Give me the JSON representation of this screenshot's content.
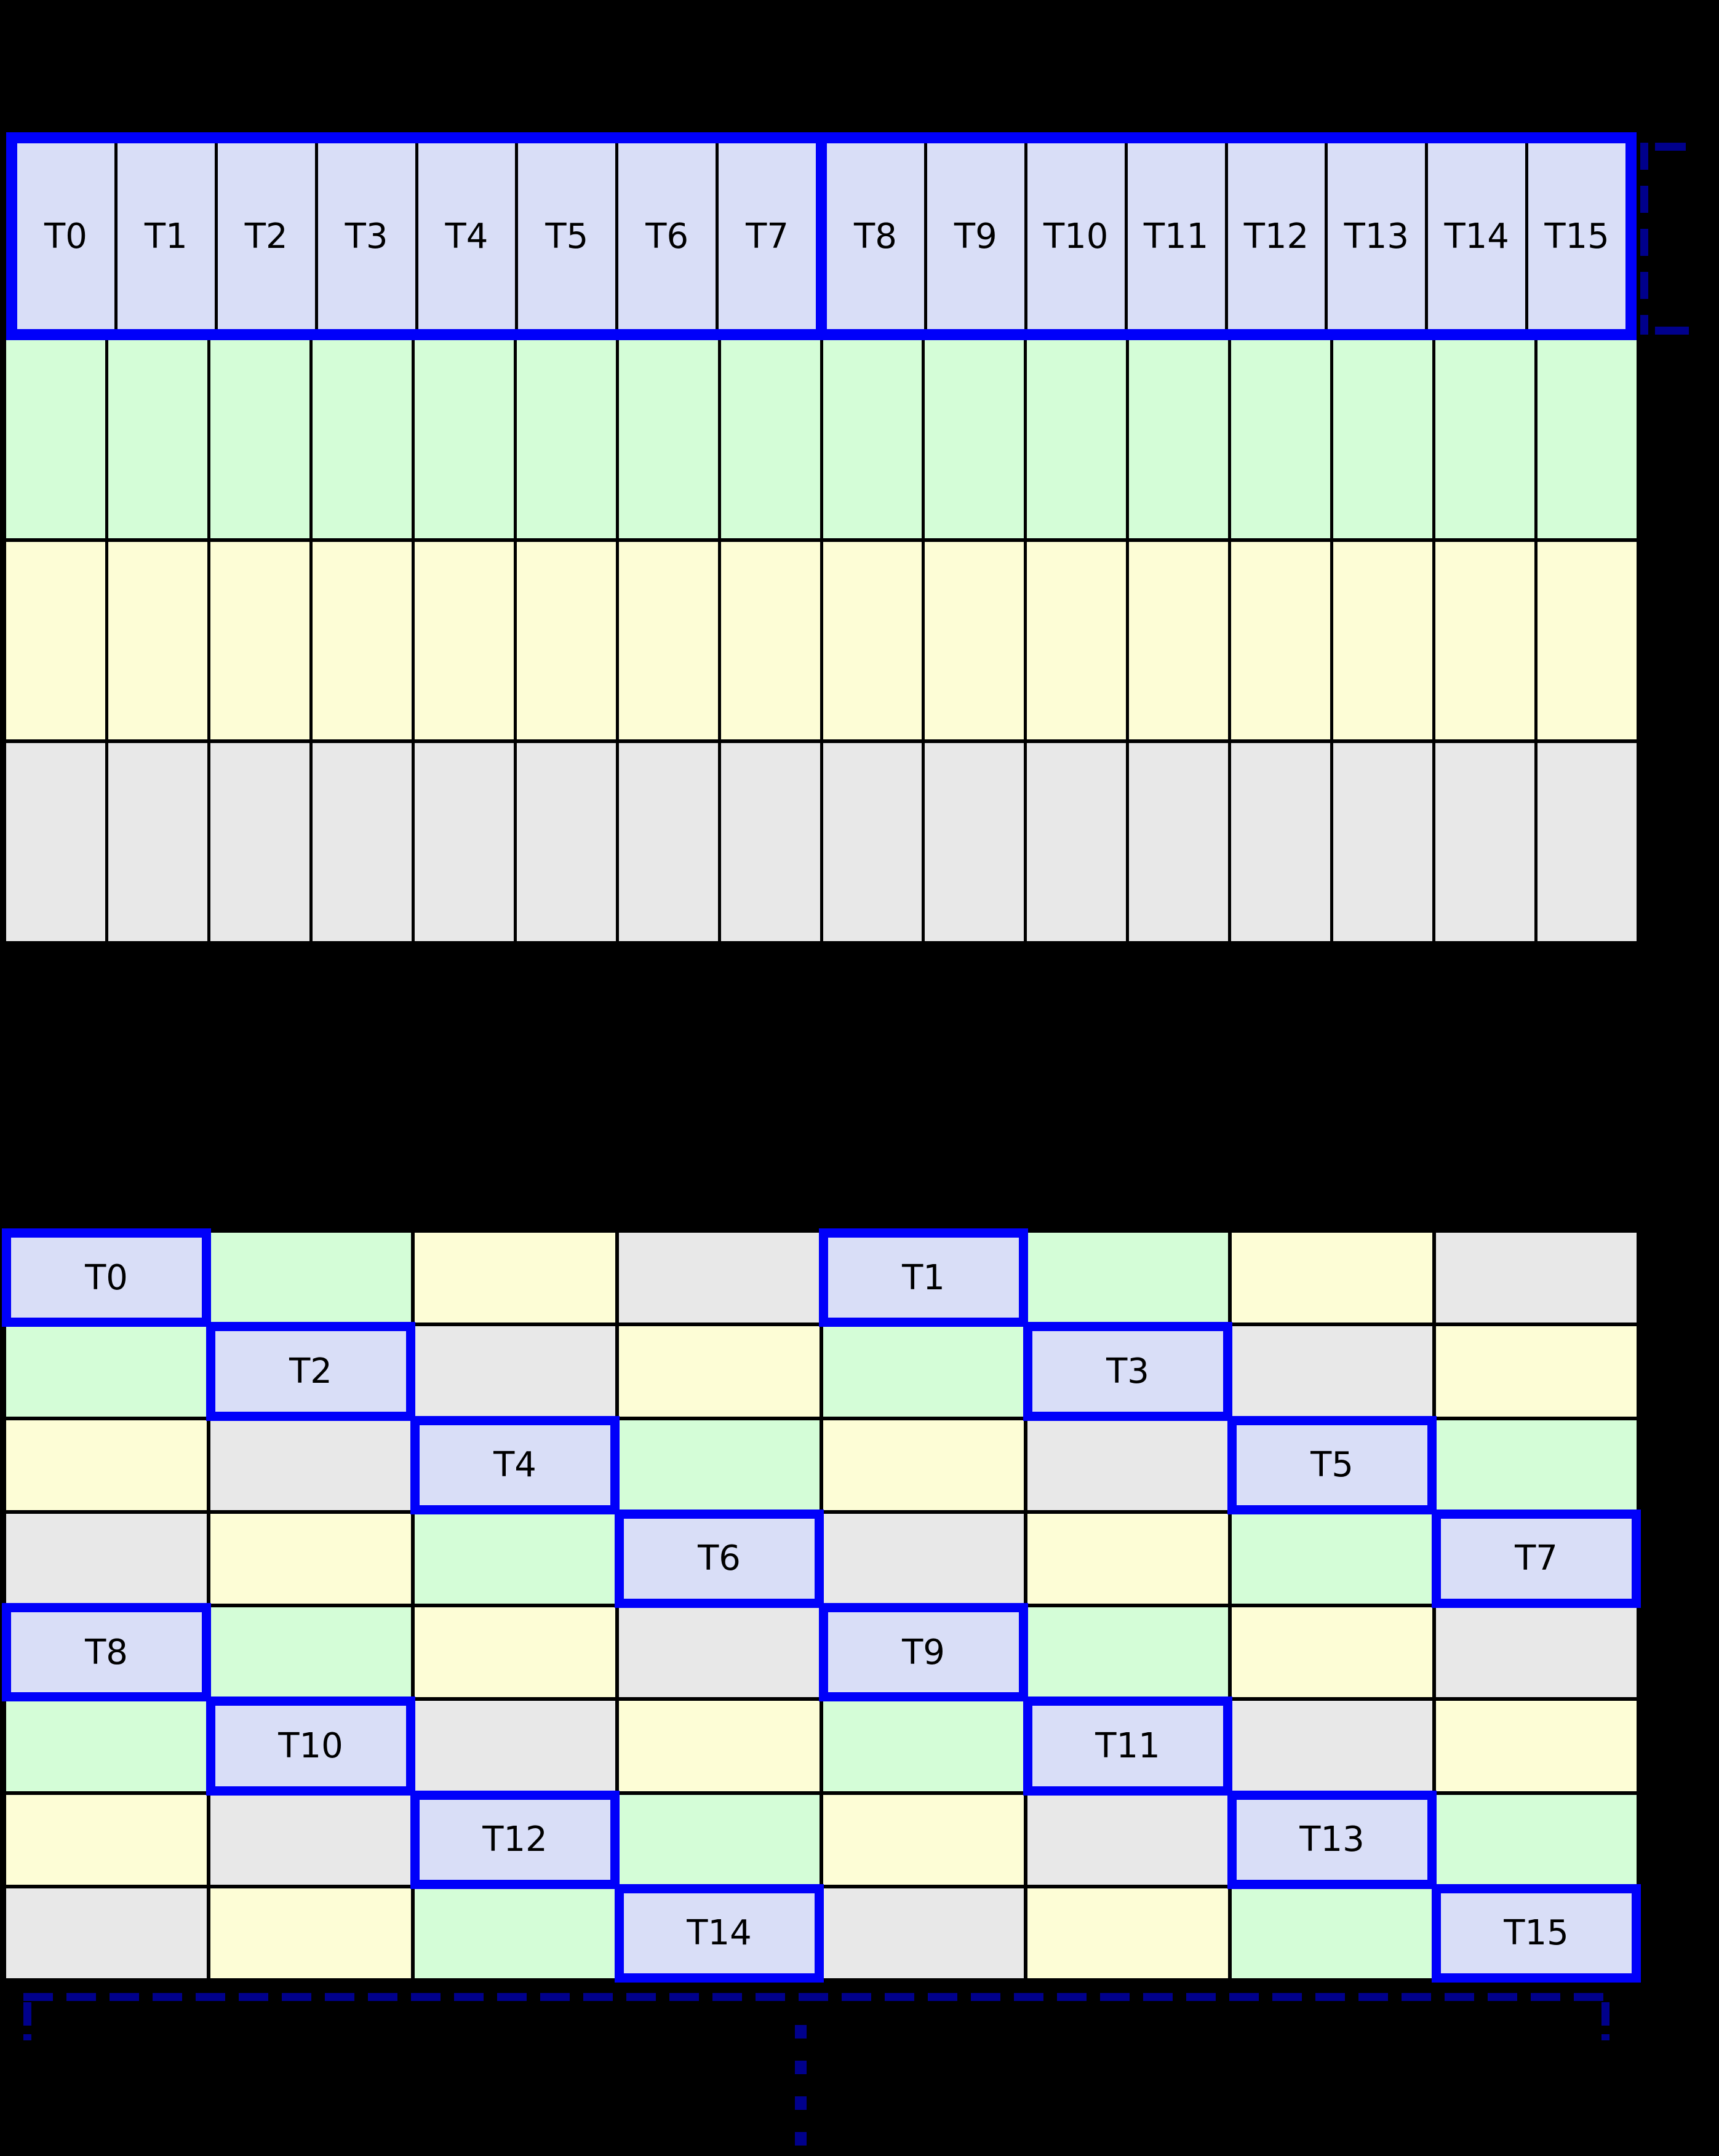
{
  "colors": {
    "background": "#000000",
    "cell_thread": "#d9def7",
    "cell_green": "#d4fdd7",
    "cell_yellow": "#fdfdd6",
    "cell_gray": "#e8e8e8",
    "highlight_border": "#0000fa",
    "bracket_navy": "#00008b",
    "grid_line": "#000000",
    "label_color": "#000000"
  },
  "top_grid": {
    "columns": 16,
    "group_split": 8,
    "thread_labels": [
      "T0",
      "T1",
      "T2",
      "T3",
      "T4",
      "T5",
      "T6",
      "T7",
      "T8",
      "T9",
      "T10",
      "T11",
      "T12",
      "T13",
      "T14",
      "T15"
    ],
    "memory_row_colors": [
      "green",
      "yellow",
      "gray"
    ]
  },
  "bottom_grid": {
    "columns": 8,
    "rows": [
      {
        "colors": [
          "thread",
          "green",
          "yellow",
          "gray",
          "thread",
          "green",
          "yellow",
          "gray"
        ],
        "labels": [
          "T0",
          "",
          "",
          "",
          "T1",
          "",
          "",
          ""
        ]
      },
      {
        "colors": [
          "green",
          "thread",
          "gray",
          "yellow",
          "green",
          "thread",
          "gray",
          "yellow"
        ],
        "labels": [
          "",
          "T2",
          "",
          "",
          "",
          "T3",
          "",
          ""
        ]
      },
      {
        "colors": [
          "yellow",
          "gray",
          "thread",
          "green",
          "yellow",
          "gray",
          "thread",
          "green"
        ],
        "labels": [
          "",
          "",
          "T4",
          "",
          "",
          "",
          "T5",
          ""
        ]
      },
      {
        "colors": [
          "gray",
          "yellow",
          "green",
          "thread",
          "gray",
          "yellow",
          "green",
          "thread"
        ],
        "labels": [
          "",
          "",
          "",
          "T6",
          "",
          "",
          "",
          "T7"
        ]
      },
      {
        "colors": [
          "thread",
          "green",
          "yellow",
          "gray",
          "thread",
          "green",
          "yellow",
          "gray"
        ],
        "labels": [
          "T8",
          "",
          "",
          "",
          "T9",
          "",
          "",
          ""
        ]
      },
      {
        "colors": [
          "green",
          "thread",
          "gray",
          "yellow",
          "green",
          "thread",
          "gray",
          "yellow"
        ],
        "labels": [
          "",
          "T10",
          "",
          "",
          "",
          "T11",
          "",
          ""
        ]
      },
      {
        "colors": [
          "yellow",
          "gray",
          "thread",
          "green",
          "yellow",
          "gray",
          "thread",
          "green"
        ],
        "labels": [
          "",
          "",
          "T12",
          "",
          "",
          "",
          "T13",
          ""
        ]
      },
      {
        "colors": [
          "gray",
          "yellow",
          "green",
          "thread",
          "gray",
          "yellow",
          "green",
          "thread"
        ],
        "labels": [
          "",
          "",
          "",
          "T14",
          "",
          "",
          "",
          "T15"
        ]
      }
    ]
  },
  "annotations": {
    "right_bracket": "dashed-row-height-bracket",
    "bottom_bracket": "dashed-span-bracket",
    "ellipsis_dots": 4
  }
}
